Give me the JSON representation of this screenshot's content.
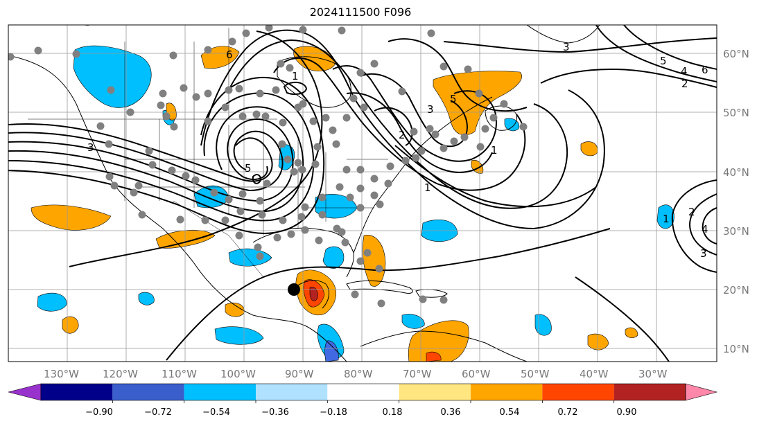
{
  "title": "2024111500 F096",
  "map": {
    "lon_labels": [
      "130°W",
      "120°W",
      "110°W",
      "100°W",
      "90°W",
      "80°W",
      "70°W",
      "60°W",
      "50°W",
      "40°W",
      "30°W"
    ],
    "lat_labels": [
      "60°N",
      "50°N",
      "40°N",
      "30°N",
      "20°N",
      "10°N"
    ],
    "contour_labels": [
      "6",
      "5",
      "3",
      "1",
      "1",
      "2",
      "1",
      "3",
      "5",
      "4",
      "6",
      "2",
      "1",
      "2",
      "3",
      "4",
      "3",
      "5"
    ],
    "colors": {
      "pos_light": "#ffe680",
      "pos_1": "#ffa500",
      "pos_2": "#ff4500",
      "pos_3": "#b22222",
      "neg_1": "#00bfff",
      "neg_2": "#4169e1",
      "station_dot": "#808080",
      "storm_marker": "#000000"
    }
  },
  "colorbar": {
    "tick_labels": [
      "−0.90",
      "−0.72",
      "−0.54",
      "−0.36",
      "−0.18",
      "0.18",
      "0.36",
      "0.54",
      "0.72",
      "0.90"
    ],
    "colors": [
      "#9932cc",
      "#00008b",
      "#3a5fcd",
      "#00bfff",
      "#b0e2ff",
      "#ffffff",
      "#ffe680",
      "#ffa500",
      "#ff4500",
      "#b22222",
      "#ff88aa"
    ]
  }
}
